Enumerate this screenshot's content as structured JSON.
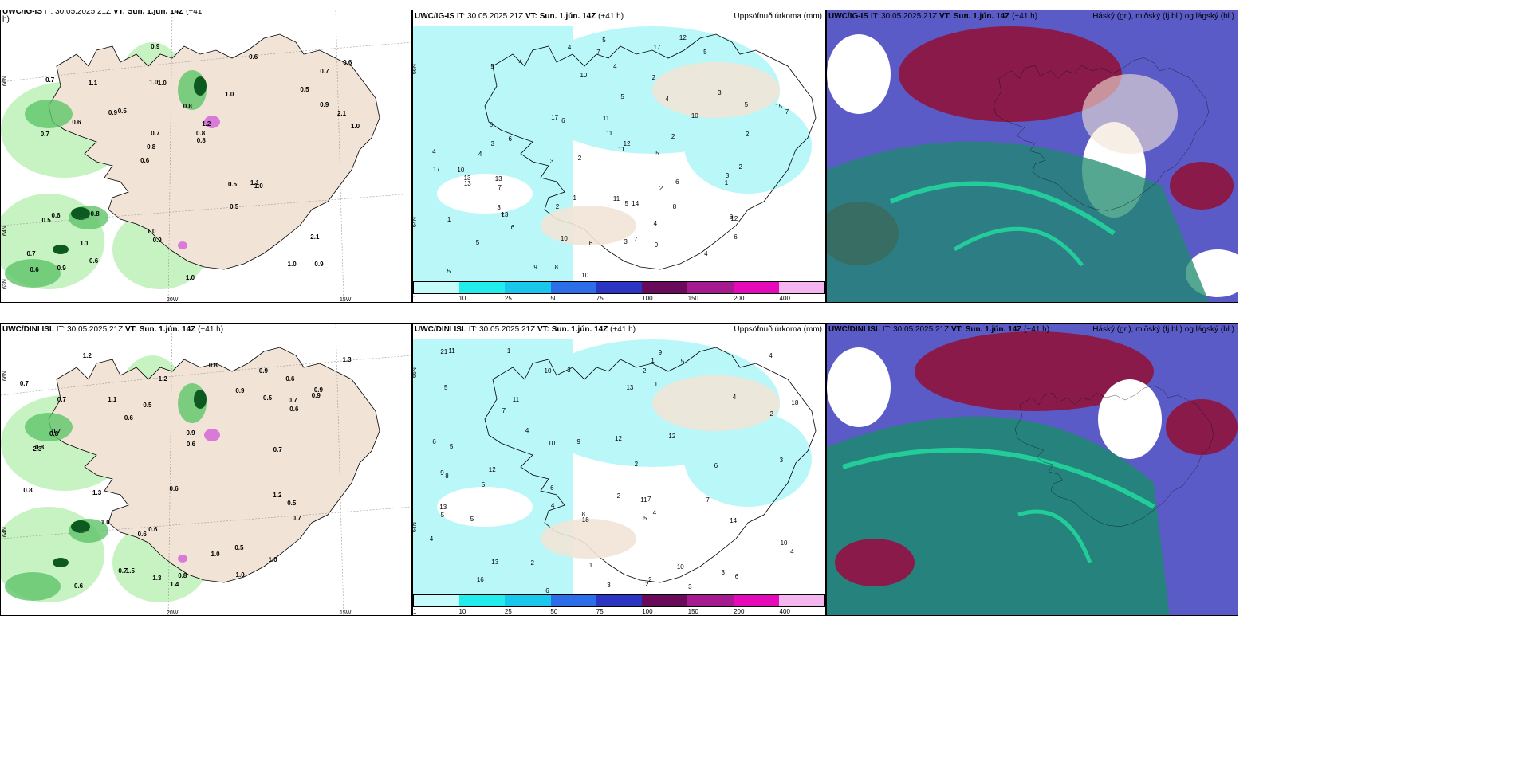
{
  "row1": {
    "wind": {
      "header_bold_1": "UWC/IG-IS",
      "header_plain_1": " IT: 30.05.2025 21Z ",
      "header_bold_2": "VT: Sun. 1.jún. 14Z",
      "header_plain_2": " (+41",
      "header_wrap": "h)",
      "axis_left": [
        "66N",
        "64N",
        "63N"
      ],
      "axis_bottom": [
        "20W",
        "15W"
      ],
      "labels": [
        "0.9",
        "0.7",
        "0.7",
        "0.6",
        "1.0",
        "0.9",
        "1.0",
        "0.8",
        "0.6",
        "0.5",
        "0.7",
        "1.1",
        "1.0",
        "1.2",
        "1.0",
        "0.7",
        "0.9",
        "1.0",
        "0.5",
        "0.9",
        "0.8",
        "1.0",
        "0.7",
        "1.1",
        "0.6",
        "0.8",
        "1.0",
        "2.1",
        "1.1",
        "1.0",
        "0.9",
        "0.6",
        "0.5",
        "0.6",
        "2.1",
        "0.8",
        "0.6",
        "0.9",
        "0.8",
        "0.5",
        "0.5",
        "0.6"
      ]
    },
    "precip": {
      "header_bold_1": "UWC/IG-IS",
      "header_plain_1": " IT: 30.05.2025 21Z ",
      "header_bold_2": "VT: Sun. 1.jún. 14Z",
      "header_plain_2": " (+41 h)",
      "title_right": "Uppsöfnuð úrkoma (mm)",
      "axis_left": [
        "66N",
        "64N"
      ],
      "labels": [
        "5",
        "5",
        "4",
        "3",
        "5",
        "6",
        "7",
        "13",
        "5",
        "10",
        "10",
        "5",
        "8",
        "11",
        "10",
        "4",
        "6",
        "4",
        "7",
        "8",
        "9",
        "7",
        "10",
        "12",
        "11",
        "10",
        "13",
        "17",
        "5",
        "6",
        "8",
        "6",
        "7",
        "11",
        "12",
        "13",
        "15",
        "5",
        "4",
        "3",
        "7",
        "4",
        "6",
        "13",
        "17",
        "3",
        "2",
        "3",
        "2",
        "4",
        "6",
        "9",
        "11",
        "2",
        "3",
        "14",
        "17",
        "8",
        "5",
        "4",
        "5",
        "12",
        "2",
        "2",
        "1",
        "1",
        "3",
        "2",
        "2",
        "4",
        "1"
      ]
    },
    "clouds": {
      "header_bold_1": "UWC/IG-IS",
      "header_plain_1": " IT: 30.05.2025 21Z ",
      "header_bold_2": "VT: Sun. 1.jún. 14Z",
      "header_plain_2": " (+41 h)",
      "title_right": "Háský (gr.), miðský (fj.bl.) og lágský (bl.)"
    }
  },
  "row2": {
    "wind": {
      "header_bold_1": "UWC/DINI ISL",
      "header_plain_1": " IT: 30.05.2025 21Z ",
      "header_bold_2": "VT: Sun. 1.jún. 14Z",
      "header_plain_2": " (+41 h)",
      "axis_left": [
        "66N",
        "64N"
      ],
      "axis_bottom": [
        "20W",
        "15W"
      ],
      "labels": [
        "0.6",
        "0.6",
        "0.8",
        "0.6",
        "1.2",
        "0.7",
        "1.3",
        "0.9",
        "1.0",
        "0.8",
        "0.7",
        "0.5",
        "0.9",
        "0.6",
        "0.7",
        "1.0",
        "1.3",
        "0.8",
        "1.0",
        "1.2",
        "0.6",
        "0.9",
        "1.3",
        "0.7",
        "1.0",
        "0.8",
        "0.5",
        "0.6",
        "1.5",
        "0.7",
        "2.3",
        "1.1",
        "1.4",
        "0.7",
        "0.9",
        "0.5",
        "0.5",
        "0.6",
        "0.9",
        "0.6",
        "0.8",
        "0.7",
        "1.2"
      ]
    },
    "precip": {
      "header_bold_1": "UWC/DINI ISL",
      "header_plain_1": " IT: 30.05.2025 21Z ",
      "header_bold_2": "VT: Sun. 1.jún. 14Z",
      "header_plain_2": " (+41 h)",
      "title_right": "Uppsöfnuð úrkoma (mm)",
      "axis_left": [
        "66N",
        "64N"
      ],
      "labels": [
        "4",
        "5",
        "4",
        "5",
        "6",
        "9",
        "6",
        "7",
        "10",
        "12",
        "13",
        "6",
        "5",
        "8",
        "14",
        "10",
        "12",
        "5",
        "6",
        "7",
        "13",
        "11",
        "18",
        "16",
        "21",
        "9",
        "10",
        "8",
        "5",
        "4",
        "3",
        "4",
        "3",
        "5",
        "2",
        "1",
        "3",
        "4",
        "6",
        "11",
        "12",
        "13",
        "18",
        "10",
        "5",
        "4",
        "3",
        "2",
        "1",
        "2",
        "1",
        "4",
        "9",
        "11",
        "7",
        "3",
        "2",
        "2",
        "2",
        "1",
        "2"
      ]
    },
    "clouds": {
      "header_bold_1": "UWC/DINI ISL",
      "header_plain_1": " IT: 30.05.2025 21Z ",
      "header_bold_2": "VT: Sun. 1.jún. 14Z",
      "header_plain_2": " (+41 h)",
      "title_right": "Háský (gr.), miðský (fj.bl.) og lágský (bl.)"
    }
  },
  "legend": {
    "ticks": [
      "1",
      "10",
      "25",
      "50",
      "75",
      "100",
      "150",
      "200",
      "400"
    ],
    "colors": [
      "#c6fbfb",
      "#22ecec",
      "#19c6ec",
      "#2b6ee8",
      "#2b35c4",
      "#6a0a5a",
      "#a51a8e",
      "#e40ab9",
      "#f5b5ef"
    ]
  },
  "colors": {
    "land": "#f1e4d6",
    "coast": "#000000",
    "green_light": "#c7f2c2",
    "green_mid": "#5fc56a",
    "green_dark": "#0c5a1f",
    "precip_light": "#b9f7f8",
    "cloud_high": "#1c8a6e",
    "cloud_mid": "#5b5bc8",
    "cloud_low": "#8a1a4a"
  }
}
